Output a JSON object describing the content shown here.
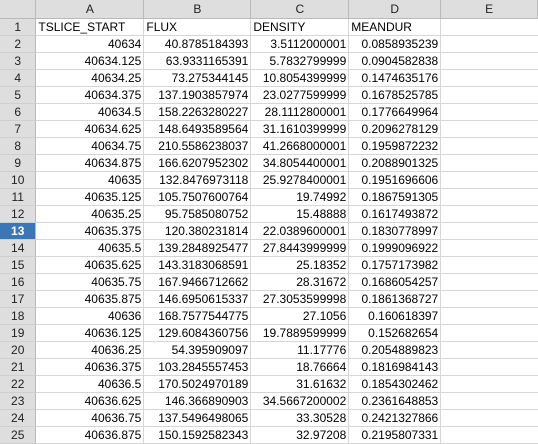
{
  "columns": [
    "A",
    "B",
    "C",
    "D",
    "E"
  ],
  "active_row": "13",
  "rows": [
    {
      "num": "1",
      "cells": [
        "TSLICE_START",
        "FLUX",
        "DENSITY",
        "MEANDUR",
        ""
      ]
    },
    {
      "num": "2",
      "cells": [
        "40634",
        "40.8785184393",
        "3.5112000001",
        "0.0858935239",
        ""
      ]
    },
    {
      "num": "3",
      "cells": [
        "40634.125",
        "63.9331165391",
        "5.7832799999",
        "0.0904582838",
        ""
      ]
    },
    {
      "num": "4",
      "cells": [
        "40634.25",
        "73.275344145",
        "10.8054399999",
        "0.1474635176",
        ""
      ]
    },
    {
      "num": "5",
      "cells": [
        "40634.375",
        "137.1903857974",
        "23.0277599999",
        "0.1678525785",
        ""
      ]
    },
    {
      "num": "6",
      "cells": [
        "40634.5",
        "158.2263280227",
        "28.1112800001",
        "0.1776649964",
        ""
      ]
    },
    {
      "num": "7",
      "cells": [
        "40634.625",
        "148.6493589564",
        "31.1610399999",
        "0.2096278129",
        ""
      ]
    },
    {
      "num": "8",
      "cells": [
        "40634.75",
        "210.5586238037",
        "41.2668000001",
        "0.1959872232",
        ""
      ]
    },
    {
      "num": "9",
      "cells": [
        "40634.875",
        "166.6207952302",
        "34.8054400001",
        "0.2088901325",
        ""
      ]
    },
    {
      "num": "10",
      "cells": [
        "40635",
        "132.8476973118",
        "25.9278400001",
        "0.1951696606",
        ""
      ]
    },
    {
      "num": "11",
      "cells": [
        "40635.125",
        "105.7507600764",
        "19.74992",
        "0.1867591305",
        ""
      ]
    },
    {
      "num": "12",
      "cells": [
        "40635.25",
        "95.7585080752",
        "15.48888",
        "0.1617493872",
        ""
      ]
    },
    {
      "num": "13",
      "cells": [
        "40635.375",
        "120.380231814",
        "22.0389600001",
        "0.1830778997",
        ""
      ]
    },
    {
      "num": "14",
      "cells": [
        "40635.5",
        "139.2848925477",
        "27.8443999999",
        "0.1999096922",
        ""
      ]
    },
    {
      "num": "15",
      "cells": [
        "40635.625",
        "143.3183068591",
        "25.18352",
        "0.1757173982",
        ""
      ]
    },
    {
      "num": "16",
      "cells": [
        "40635.75",
        "167.9466712662",
        "28.31672",
        "0.1686054257",
        ""
      ]
    },
    {
      "num": "17",
      "cells": [
        "40635.875",
        "146.6950615337",
        "27.3053599998",
        "0.1861368727",
        ""
      ]
    },
    {
      "num": "18",
      "cells": [
        "40636",
        "168.7577544775",
        "27.1056",
        "0.160618397",
        ""
      ]
    },
    {
      "num": "19",
      "cells": [
        "40636.125",
        "129.6084360756",
        "19.7889599999",
        "0.152682654",
        ""
      ]
    },
    {
      "num": "20",
      "cells": [
        "40636.25",
        "54.395909097",
        "11.17776",
        "0.2054889823",
        ""
      ]
    },
    {
      "num": "21",
      "cells": [
        "40636.375",
        "103.2845557453",
        "18.76664",
        "0.1816984143",
        ""
      ]
    },
    {
      "num": "22",
      "cells": [
        "40636.5",
        "170.5024970189",
        "31.61632",
        "0.1854302462",
        ""
      ]
    },
    {
      "num": "23",
      "cells": [
        "40636.625",
        "146.366890903",
        "34.5667200002",
        "0.2361648853",
        ""
      ]
    },
    {
      "num": "24",
      "cells": [
        "40636.75",
        "137.5496498065",
        "33.30528",
        "0.2421327866",
        ""
      ]
    },
    {
      "num": "25",
      "cells": [
        "40636.875",
        "150.1592582343",
        "32.97208",
        "0.2195807331",
        ""
      ]
    }
  ]
}
